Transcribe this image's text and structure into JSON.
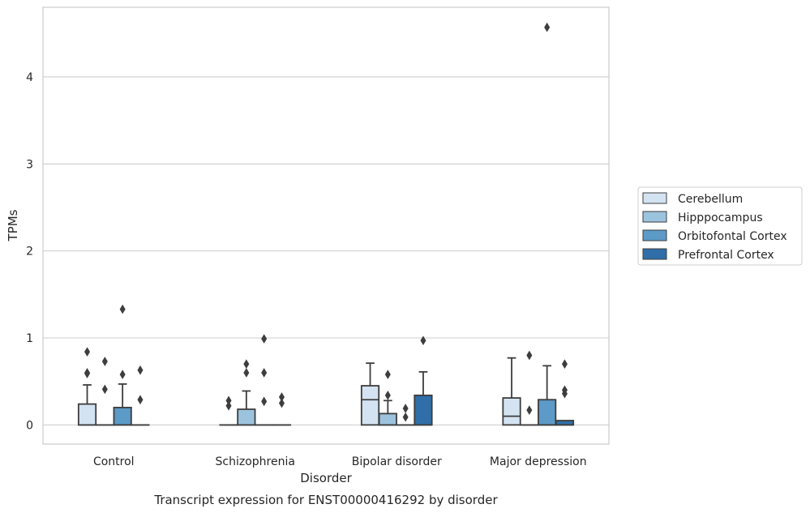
{
  "chart_data": {
    "type": "box",
    "caption": "Transcript expression for ENST00000416292 by disorder",
    "xlabel": "Disorder",
    "ylabel": "TPMs",
    "ylim": [
      -0.22,
      4.8
    ],
    "yticks": [
      0,
      1,
      2,
      3,
      4
    ],
    "grid": true,
    "legend_position": "right",
    "categories": [
      "Control",
      "Schizophrenia",
      "Bipolar disorder",
      "Major depression"
    ],
    "series": [
      {
        "name": "Cerebellum",
        "color": "#d4e3f1",
        "boxes": [
          {
            "q1": 0,
            "median": 0,
            "q3": 0.24,
            "whisker_low": 0,
            "whisker_high": 0.46,
            "outliers": [
              0.84,
              0.6,
              0.59
            ]
          },
          {
            "q1": 0,
            "median": 0,
            "q3": 0,
            "whisker_low": 0,
            "whisker_high": 0,
            "outliers": [
              0.28,
              0.22
            ]
          },
          {
            "q1": 0,
            "median": 0.29,
            "q3": 0.45,
            "whisker_low": 0,
            "whisker_high": 0.71,
            "outliers": []
          },
          {
            "q1": 0,
            "median": 0.1,
            "q3": 0.31,
            "whisker_low": 0,
            "whisker_high": 0.77,
            "outliers": []
          }
        ]
      },
      {
        "name": "Hipppocampus",
        "color": "#9cc3de",
        "boxes": [
          {
            "q1": 0,
            "median": 0,
            "q3": 0,
            "whisker_low": 0,
            "whisker_high": 0,
            "outliers": [
              0.73,
              0.41
            ]
          },
          {
            "q1": 0,
            "median": 0,
            "q3": 0.18,
            "whisker_low": 0,
            "whisker_high": 0.39,
            "outliers": [
              0.7,
              0.6
            ]
          },
          {
            "q1": 0,
            "median": 0,
            "q3": 0.13,
            "whisker_low": 0,
            "whisker_high": 0.28,
            "outliers": [
              0.58,
              0.34
            ]
          },
          {
            "q1": 0,
            "median": 0,
            "q3": 0,
            "whisker_low": 0,
            "whisker_high": 0,
            "outliers": [
              0.8,
              0.17
            ]
          }
        ]
      },
      {
        "name": "Orbitofontal Cortex",
        "color": "#5c9ac7",
        "boxes": [
          {
            "q1": 0,
            "median": 0,
            "q3": 0.2,
            "whisker_low": 0,
            "whisker_high": 0.47,
            "outliers": [
              1.33,
              0.58
            ]
          },
          {
            "q1": 0,
            "median": 0,
            "q3": 0,
            "whisker_low": 0,
            "whisker_high": 0,
            "outliers": [
              0.99,
              0.6,
              0.27
            ]
          },
          {
            "q1": 0,
            "median": 0,
            "q3": 0,
            "whisker_low": 0,
            "whisker_high": 0,
            "outliers": [
              0.19,
              0.09
            ]
          },
          {
            "q1": 0,
            "median": 0,
            "q3": 0.29,
            "whisker_low": 0,
            "whisker_high": 0.68,
            "outliers": [
              4.57
            ]
          }
        ]
      },
      {
        "name": "Prefrontal Cortex",
        "color": "#2f6ea9",
        "boxes": [
          {
            "q1": 0,
            "median": 0,
            "q3": 0,
            "whisker_low": 0,
            "whisker_high": 0,
            "outliers": [
              0.63,
              0.29
            ]
          },
          {
            "q1": 0,
            "median": 0,
            "q3": 0,
            "whisker_low": 0,
            "whisker_high": 0,
            "outliers": [
              0.32,
              0.25
            ]
          },
          {
            "q1": 0,
            "median": 0,
            "q3": 0.34,
            "whisker_low": 0,
            "whisker_high": 0.61,
            "outliers": [
              0.97
            ]
          },
          {
            "q1": 0,
            "median": 0,
            "q3": 0.05,
            "whisker_low": 0,
            "whisker_high": 0.05,
            "outliers": [
              0.7,
              0.4,
              0.36
            ]
          }
        ]
      }
    ]
  }
}
